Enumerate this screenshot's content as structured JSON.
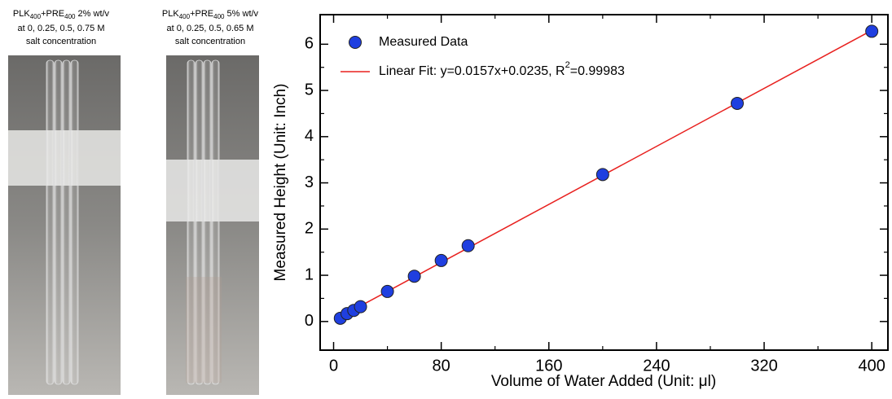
{
  "photos": [
    {
      "caption": [
        "PLK",
        "400",
        "+PRE",
        "400",
        " 2% wt/v"
      ],
      "lines": [
        "at 0, 0.25, 0.5, 0.75 M",
        "salt concentration"
      ]
    },
    {
      "caption": [
        "PLK",
        "400",
        "+PRE",
        "400",
        " 5% wt/v"
      ],
      "lines": [
        "at 0, 0.25, 0.5, 0.65 M",
        "salt concentration"
      ]
    }
  ],
  "chart_data": {
    "type": "scatter",
    "xlabel": "Volume of Water Added (Unit: μl)",
    "ylabel": "Measured Height (Unit: Inch)",
    "xlim": [
      -10,
      412
    ],
    "ylim": [
      -0.62,
      6.64
    ],
    "xticks": [
      0,
      80,
      160,
      240,
      320,
      400
    ],
    "xminorticks": [
      40,
      120,
      200,
      280,
      360
    ],
    "yticks": [
      0,
      1,
      2,
      3,
      4,
      5,
      6
    ],
    "yminorticks": [
      0.5,
      1.5,
      2.5,
      3.5,
      4.5,
      5.5
    ],
    "legend": "upper left",
    "series": [
      {
        "name": "Measured Data",
        "color": "#1f3fe0",
        "x": [
          5,
          10,
          15,
          20,
          40,
          60,
          80,
          100,
          200,
          300,
          400
        ],
        "values": [
          0.07,
          0.17,
          0.24,
          0.32,
          0.65,
          0.98,
          1.32,
          1.64,
          3.18,
          4.72,
          6.28
        ]
      }
    ],
    "fit": {
      "name": [
        "Linear Fit: y=0.0157x+0.0235, R",
        "2",
        "=0.99983"
      ],
      "color": "#e8201e",
      "x": [
        5,
        400
      ],
      "values": [
        0.102,
        6.3
      ]
    }
  }
}
